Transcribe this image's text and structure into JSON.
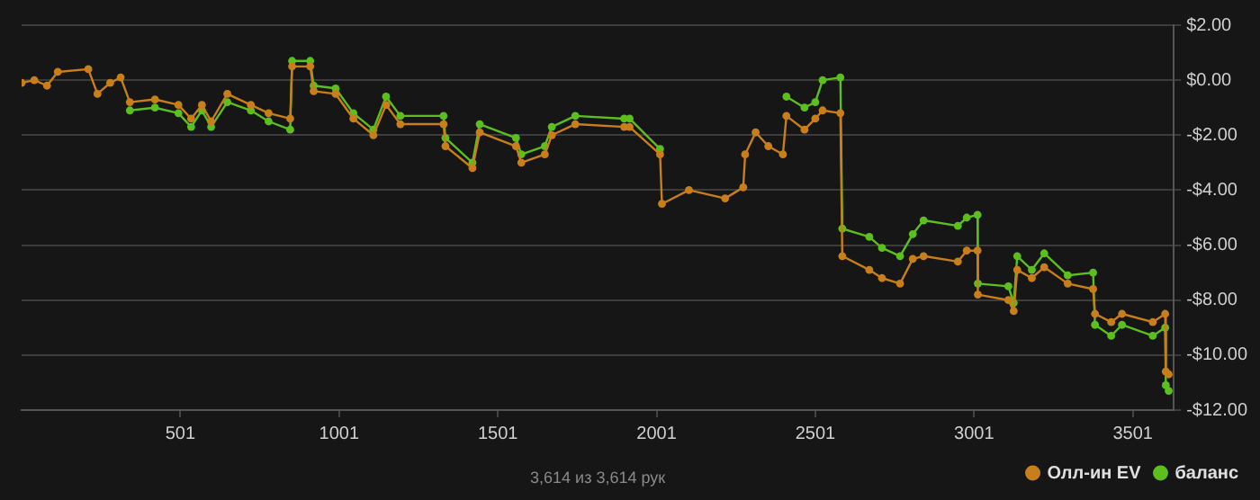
{
  "chart_data": {
    "type": "line",
    "marker": "circle",
    "grid": "y",
    "legend": "bottom right",
    "x": [
      1,
      41,
      81,
      115,
      211,
      240,
      280,
      313,
      342,
      421,
      495,
      535,
      569,
      598,
      649,
      723,
      779,
      847,
      853,
      910,
      921,
      990,
      1046,
      1109,
      1149,
      1194,
      1330,
      1336,
      1421,
      1444,
      1558,
      1575,
      1649,
      1671,
      1745,
      1899,
      1916,
      2012,
      2018,
      2103,
      2217,
      2274,
      2280,
      2313,
      2353,
      2399,
      2410,
      2467,
      2501,
      2524,
      2580,
      2586,
      2671,
      2711,
      2768,
      2808,
      2842,
      2950,
      2978,
      3012,
      3013,
      3109,
      3126,
      3137,
      3183,
      3222,
      3296,
      3376,
      3382,
      3433,
      3467,
      3564,
      3603,
      3605,
      3614
    ],
    "series": [
      {
        "name": "Олл-ин EV",
        "color": "#c87f1a",
        "values": [
          -0.1,
          0.0,
          -0.2,
          0.3,
          0.4,
          -0.5,
          -0.1,
          0.1,
          -0.8,
          -0.7,
          -0.9,
          -1.4,
          -0.9,
          -1.5,
          -0.5,
          -0.9,
          -1.2,
          -1.4,
          0.5,
          0.5,
          -0.4,
          -0.5,
          -1.4,
          -2.0,
          -0.9,
          -1.6,
          -1.6,
          -2.4,
          -3.2,
          -1.9,
          -2.4,
          -3.0,
          -2.7,
          -2.0,
          -1.6,
          -1.7,
          -1.7,
          -2.7,
          -4.5,
          -4.0,
          -4.3,
          -3.9,
          -2.7,
          -1.9,
          -2.4,
          -2.7,
          -1.3,
          -1.8,
          -1.4,
          -1.1,
          -1.2,
          -6.4,
          -6.9,
          -7.2,
          -7.4,
          -6.5,
          -6.4,
          -6.6,
          -6.2,
          -6.2,
          -7.8,
          -8.0,
          -8.4,
          -6.9,
          -7.2,
          -6.8,
          -7.4,
          -7.6,
          -8.5,
          -8.8,
          -8.5,
          -8.8,
          -8.5,
          -10.6,
          -10.7
        ]
      },
      {
        "name": "баланс",
        "color": "#5cbf1e",
        "values": [
          null,
          null,
          null,
          null,
          null,
          null,
          null,
          null,
          -1.1,
          -1.0,
          -1.2,
          -1.7,
          -1.1,
          -1.7,
          -0.8,
          -1.1,
          -1.5,
          -1.8,
          0.7,
          0.7,
          -0.2,
          -0.3,
          -1.2,
          -1.8,
          -0.6,
          -1.3,
          -1.3,
          -2.1,
          -3.0,
          -1.6,
          -2.1,
          -2.7,
          -2.4,
          -1.7,
          -1.3,
          -1.4,
          -1.4,
          -2.5,
          null,
          null,
          null,
          null,
          null,
          null,
          null,
          null,
          -0.6,
          -1.0,
          -0.8,
          0.0,
          0.1,
          -5.4,
          -5.7,
          -6.1,
          -6.4,
          -5.6,
          -5.1,
          -5.3,
          -5.0,
          -4.9,
          -7.4,
          -7.5,
          -8.1,
          -6.4,
          -6.9,
          -6.3,
          -7.1,
          -7.0,
          -8.9,
          -9.3,
          -8.9,
          -9.3,
          -9.0,
          -11.1,
          -11.3
        ]
      }
    ],
    "xlim": [
      1,
      3630
    ],
    "xticks": [
      501,
      1001,
      1501,
      2001,
      2501,
      3001,
      3501
    ],
    "ylim": [
      -12,
      2
    ],
    "yticks": [
      {
        "value": 2,
        "label": "$2.00"
      },
      {
        "value": 0,
        "label": "$0.00"
      },
      {
        "value": -2,
        "label": "-$2.00"
      },
      {
        "value": -4,
        "label": "-$4.00"
      },
      {
        "value": -6,
        "label": "-$6.00"
      },
      {
        "value": -8,
        "label": "-$8.00"
      },
      {
        "value": -10,
        "label": "-$10.00"
      },
      {
        "value": -12,
        "label": "-$12.00"
      }
    ],
    "annotations": [
      "3,614 из 3,614 рук"
    ]
  }
}
